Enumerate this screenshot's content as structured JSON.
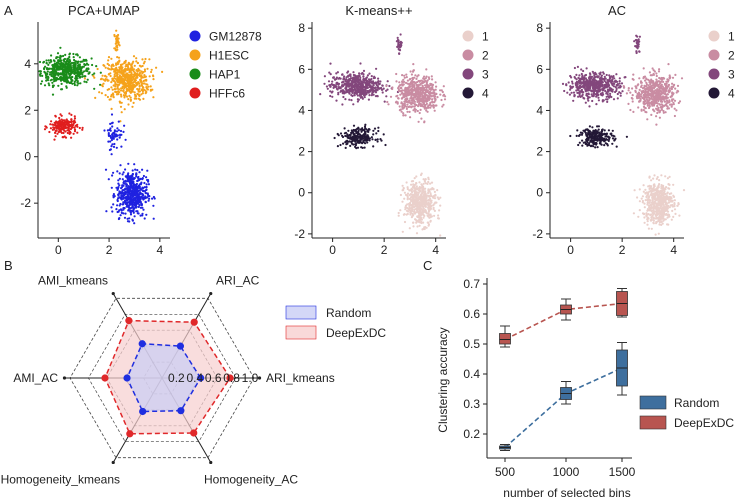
{
  "panel_labels": {
    "a": "A",
    "b": "B",
    "c": "C"
  },
  "chart_data": [
    {
      "type": "scatter",
      "title": "PCA+UMAP",
      "xlim": [
        -0.8,
        4.4
      ],
      "ylim": [
        -3.5,
        5.8
      ],
      "xticks": [
        "0",
        "2",
        "4"
      ],
      "yticks": [
        "-2",
        "0",
        "2",
        "4"
      ],
      "legend": [
        {
          "label": "GM12878",
          "color": "#1f22e0"
        },
        {
          "label": "H1ESC",
          "color": "#f5a21b"
        },
        {
          "label": "HAP1",
          "color": "#1a8c1a"
        },
        {
          "label": "HFFc6",
          "color": "#e01e1e"
        }
      ],
      "clusters": [
        {
          "label": "HAP1",
          "color": "#1a8c1a",
          "cx": 0.3,
          "cy": 3.7,
          "sx": 0.9,
          "sy": 0.55,
          "n": 520
        },
        {
          "label": "H1ESC",
          "color": "#f5a21b",
          "cx": 2.7,
          "cy": 3.3,
          "sx": 0.8,
          "sy": 0.8,
          "n": 560
        },
        {
          "label": "H1ESC",
          "color": "#f5a21b",
          "cx": 2.3,
          "cy": 5.0,
          "sx": 0.08,
          "sy": 0.35,
          "n": 30
        },
        {
          "label": "HFFc6",
          "color": "#e01e1e",
          "cx": 0.2,
          "cy": 1.3,
          "sx": 0.5,
          "sy": 0.35,
          "n": 200
        },
        {
          "label": "GM12878",
          "color": "#1f22e0",
          "cx": 2.9,
          "cy": -1.6,
          "sx": 0.55,
          "sy": 0.9,
          "n": 520
        },
        {
          "label": "GM12878",
          "color": "#1f22e0",
          "cx": 2.2,
          "cy": 1.0,
          "sx": 0.3,
          "sy": 0.6,
          "n": 60
        }
      ]
    },
    {
      "type": "scatter",
      "title": "K-means++",
      "xlim": [
        -0.8,
        4.4
      ],
      "ylim": [
        -2.2,
        8.3
      ],
      "xticks": [
        "0",
        "2",
        "4"
      ],
      "yticks": [
        "-2",
        "0",
        "2",
        "4",
        "6",
        "8"
      ],
      "legend": [
        {
          "label": "1",
          "color": "#ead0cb"
        },
        {
          "label": "2",
          "color": "#c98ca2"
        },
        {
          "label": "3",
          "color": "#83477c"
        },
        {
          "label": "4",
          "color": "#231836"
        }
      ],
      "clusters": [
        {
          "label": "3",
          "color": "#83477c",
          "cx": 0.9,
          "cy": 5.2,
          "sx": 0.9,
          "sy": 0.55,
          "n": 520
        },
        {
          "label": "3",
          "color": "#83477c",
          "cx": 2.6,
          "cy": 7.2,
          "sx": 0.1,
          "sy": 0.4,
          "n": 30
        },
        {
          "label": "2",
          "color": "#c98ca2",
          "cx": 3.3,
          "cy": 4.8,
          "sx": 0.75,
          "sy": 0.8,
          "n": 560
        },
        {
          "label": "4",
          "color": "#231836",
          "cx": 1.0,
          "cy": 2.7,
          "sx": 0.6,
          "sy": 0.4,
          "n": 220
        },
        {
          "label": "1",
          "color": "#ead0cb",
          "cx": 3.4,
          "cy": -0.5,
          "sx": 0.55,
          "sy": 0.95,
          "n": 520
        }
      ]
    },
    {
      "type": "scatter",
      "title": "AC",
      "xlim": [
        -0.8,
        4.4
      ],
      "ylim": [
        -2.2,
        8.3
      ],
      "xticks": [
        "0",
        "2",
        "4"
      ],
      "yticks": [
        "-2",
        "0",
        "2",
        "4",
        "6",
        "8"
      ],
      "legend": [
        {
          "label": "1",
          "color": "#ead0cb"
        },
        {
          "label": "2",
          "color": "#c98ca2"
        },
        {
          "label": "3",
          "color": "#83477c"
        },
        {
          "label": "4",
          "color": "#231836"
        }
      ],
      "clusters": [
        {
          "label": "3",
          "color": "#83477c",
          "cx": 0.9,
          "cy": 5.2,
          "sx": 0.9,
          "sy": 0.55,
          "n": 520
        },
        {
          "label": "3",
          "color": "#83477c",
          "cx": 2.6,
          "cy": 7.2,
          "sx": 0.1,
          "sy": 0.4,
          "n": 30
        },
        {
          "label": "2",
          "color": "#c98ca2",
          "cx": 3.3,
          "cy": 4.8,
          "sx": 0.75,
          "sy": 0.8,
          "n": 560
        },
        {
          "label": "4",
          "color": "#231836",
          "cx": 1.0,
          "cy": 2.7,
          "sx": 0.6,
          "sy": 0.4,
          "n": 220
        },
        {
          "label": "1",
          "color": "#ead0cb",
          "cx": 3.4,
          "cy": -0.5,
          "sx": 0.55,
          "sy": 0.95,
          "n": 520
        }
      ]
    },
    {
      "type": "radar",
      "axes": [
        "ARI_kmeans",
        "ARI_AC",
        "AMI_kmeans",
        "AMI_AC",
        "Homogeneity_kmeans",
        "Homogeneity_AC"
      ],
      "rings": [
        "0.2",
        "0.4",
        "0.6",
        "0.8",
        "1.0"
      ],
      "series": [
        {
          "name": "Random",
          "color": "#1f2ee0",
          "fill": "#c9cdf5",
          "values": [
            0.42,
            0.4,
            0.43,
            0.38,
            0.42,
            0.41
          ]
        },
        {
          "name": "DeepExDC",
          "color": "#e0282a",
          "fill": "#f7cfcf",
          "values": [
            0.74,
            0.7,
            0.72,
            0.62,
            0.7,
            0.69
          ]
        }
      ]
    },
    {
      "type": "box",
      "xlabel": "number of selected bins",
      "ylabel": "Clustering accuracy",
      "categories": [
        "500",
        "1000",
        "1500"
      ],
      "ylim": [
        0.12,
        0.72
      ],
      "yticks": [
        "0.2",
        "0.3",
        "0.4",
        "0.5",
        "0.6",
        "0.7"
      ],
      "series": [
        {
          "name": "Random",
          "color": "#3e6f9e",
          "boxes": [
            {
              "min": 0.145,
              "q1": 0.15,
              "median": 0.155,
              "q3": 0.16,
              "max": 0.165
            },
            {
              "min": 0.3,
              "q1": 0.315,
              "median": 0.335,
              "q3": 0.355,
              "max": 0.375
            },
            {
              "min": 0.33,
              "q1": 0.36,
              "median": 0.42,
              "q3": 0.48,
              "max": 0.505
            }
          ]
        },
        {
          "name": "DeepExDC",
          "color": "#b85550",
          "boxes": [
            {
              "min": 0.49,
              "q1": 0.5,
              "median": 0.515,
              "q3": 0.535,
              "max": 0.56
            },
            {
              "min": 0.58,
              "q1": 0.6,
              "median": 0.615,
              "q3": 0.63,
              "max": 0.65
            },
            {
              "min": 0.59,
              "q1": 0.595,
              "median": 0.635,
              "q3": 0.675,
              "max": 0.685
            }
          ]
        }
      ]
    }
  ]
}
